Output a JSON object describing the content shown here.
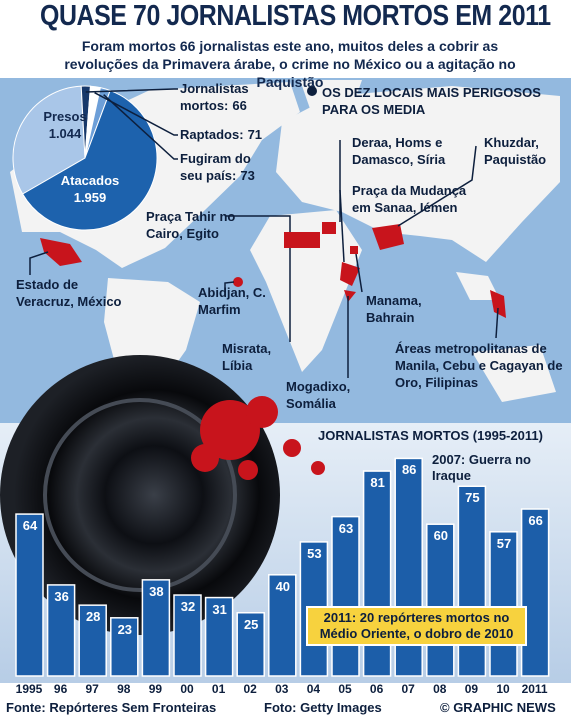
{
  "title": "QUASE 70 JORNALISTAS MORTOS EM 2011",
  "subtitle": "Foram mortos 66 jornalistas este ano, muitos deles a cobrir as revoluções da Primavera árabe, o crime no México ou a agitação no Paquistão",
  "map_heading": "OS DEZ LOCAIS MAIS PERIGOSOS PARA OS MEDIA",
  "locations": [
    "Estado de Veracruz, México",
    "Abidjan, C. Marfim",
    "Praça Tahir no Cairo, Egito",
    "Misrata, Líbia",
    "Mogadixo, Somália",
    "Deraa, Homs e Damasco, Síria",
    "Praça da Mudança em Sanaa, Iémen",
    "Manama, Bahrain",
    "Khuzdar, Paquistão",
    "Áreas metropolitanas de Manila, Cebu e Cagayan de Oro, Filipinas"
  ],
  "chart_data": [
    {
      "type": "pie",
      "categories": [
        "Presos",
        "Jornalistas mortos:",
        "Raptados:",
        "Fugiram do seu país:",
        "Atacados"
      ],
      "values": [
        1044,
        66,
        71,
        73,
        1959
      ],
      "value_labels": [
        "1.044",
        "66",
        "71",
        "73",
        "1.959"
      ],
      "colors": [
        "#a9c6e8",
        "#17386a",
        "#ffffff",
        "#6d9fd8",
        "#1d62ad"
      ]
    },
    {
      "type": "bar",
      "title": "JORNALISTAS MORTOS (1995-2011)",
      "categories": [
        "1995",
        "96",
        "97",
        "98",
        "99",
        "00",
        "01",
        "02",
        "03",
        "04",
        "05",
        "06",
        "07",
        "08",
        "09",
        "10",
        "2011"
      ],
      "values": [
        64,
        36,
        28,
        23,
        38,
        32,
        31,
        25,
        40,
        53,
        63,
        81,
        86,
        60,
        75,
        57,
        66
      ],
      "color": "#1c5ea9",
      "annotations": [
        "2007: Guerra no Iraque",
        "2011: 20 repórteres mortos no Médio Oriente, o dobro de 2010"
      ]
    }
  ],
  "footer": {
    "source": "Fonte: Repórteres Sem Fronteiras",
    "photo": "Foto: Getty Images",
    "credit": "© GRAPHIC NEWS"
  }
}
